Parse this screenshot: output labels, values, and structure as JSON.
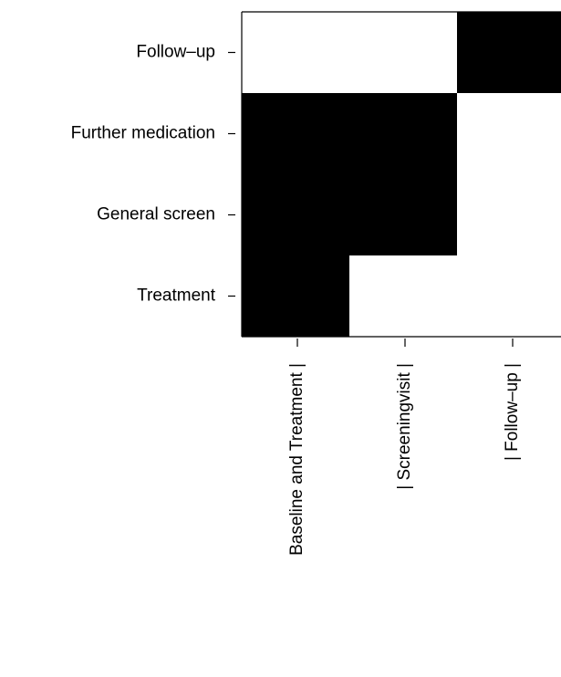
{
  "chart_data": {
    "type": "heatmap",
    "categories": [
      "Baseline and Treatment |",
      "| Screeningvisit |",
      "| Follow–up |"
    ],
    "rows": [
      "Follow–up",
      "Further medication",
      "General screen",
      "Treatment"
    ],
    "values": [
      [
        0,
        0,
        1
      ],
      [
        1,
        1,
        0
      ],
      [
        1,
        1,
        0
      ],
      [
        1,
        0,
        0
      ]
    ],
    "colors": [
      "#ffffff",
      "#000000"
    ]
  }
}
